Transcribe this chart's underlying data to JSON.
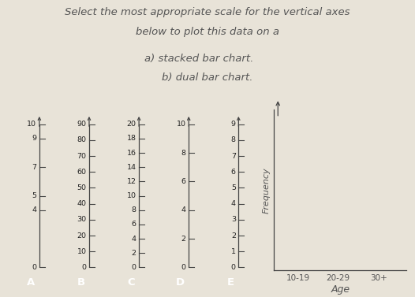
{
  "title_line1": "Select the most appropriate scale for the vertical axes",
  "title_line2": "below to plot this data on a",
  "sub_line1": "a) stacked bar chart.",
  "sub_line2": "b) dual bar chart.",
  "background_color": "#e8e3d8",
  "scale_box_color": "#ede8dd",
  "scales": [
    {
      "label": "A",
      "all_ticks": [
        0,
        4,
        5,
        7,
        9,
        10
      ],
      "max": 10
    },
    {
      "label": "B",
      "all_ticks": [
        0,
        10,
        20,
        30,
        40,
        50,
        60,
        70,
        80,
        90
      ],
      "max": 90
    },
    {
      "label": "C",
      "all_ticks": [
        0,
        2,
        4,
        6,
        8,
        10,
        12,
        14,
        16,
        18,
        20
      ],
      "max": 20
    },
    {
      "label": "D",
      "all_ticks": [
        0,
        2,
        4,
        6,
        8,
        10
      ],
      "max": 10
    },
    {
      "label": "E",
      "all_ticks": [
        0,
        1,
        2,
        3,
        4,
        5,
        6,
        7,
        8,
        9
      ],
      "max": 9
    }
  ],
  "red_label_color": "#b03030",
  "label_text_color": "#ffffff",
  "axis_color": "#444444",
  "chart_xlabel": "Age",
  "chart_ylabel": "Frequency",
  "chart_xticks": [
    "10-19",
    "20-29",
    "30+"
  ],
  "text_color": "#555555",
  "font_size_title": 9.5,
  "font_size_sub": 9.5,
  "font_size_tick": 6.8,
  "font_size_label": 9.5
}
